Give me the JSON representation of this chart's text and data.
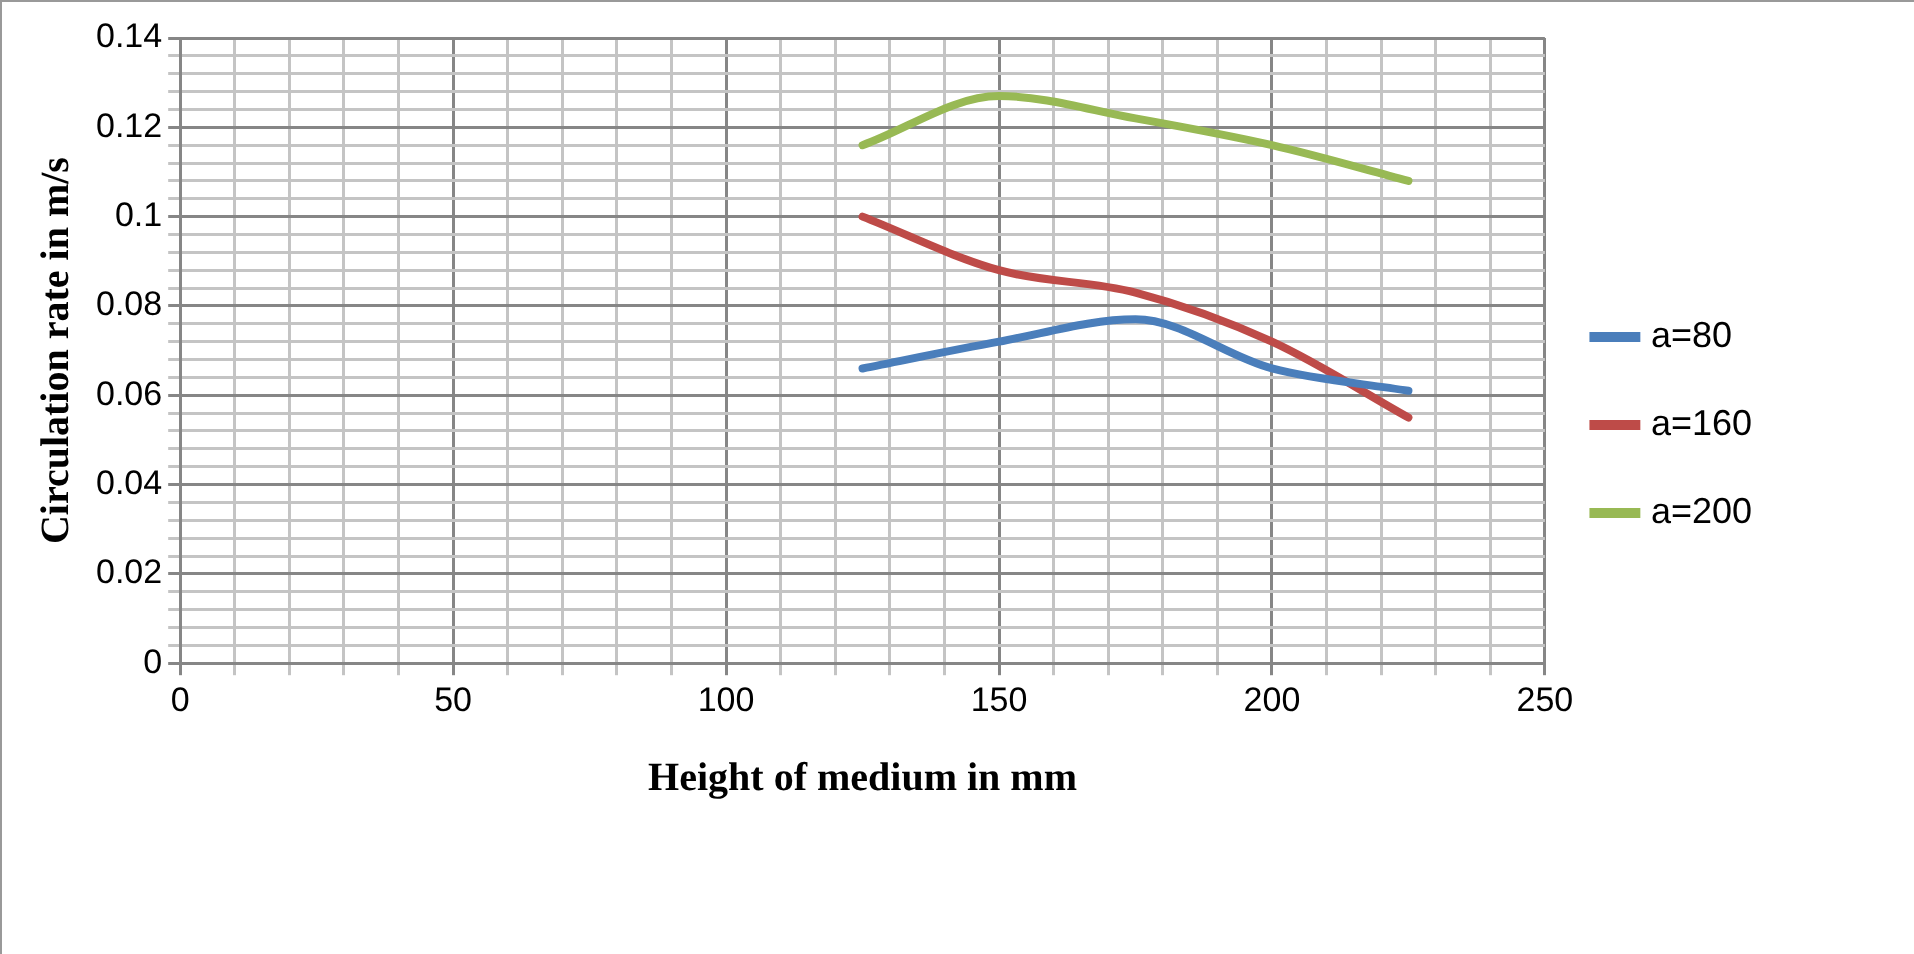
{
  "chart_data": {
    "type": "line",
    "xlabel": "Height of medium in mm",
    "ylabel": "Circulation rate in m/s",
    "x": [
      125,
      150,
      175,
      200,
      225
    ],
    "series": [
      {
        "name": "a=80",
        "color": "#4a7ebb",
        "values": [
          0.066,
          0.072,
          0.077,
          0.066,
          0.061
        ]
      },
      {
        "name": "a=160",
        "color": "#be4b48",
        "values": [
          0.1,
          0.088,
          0.083,
          0.072,
          0.055
        ]
      },
      {
        "name": "a=200",
        "color": "#98b954",
        "values": [
          0.116,
          0.127,
          0.122,
          0.116,
          0.108
        ]
      }
    ],
    "xlim": [
      0,
      250
    ],
    "xticks": [
      0,
      {
        "value": 10,
        "label": null
      },
      {
        "value": 20,
        "label": null
      },
      {
        "value": 30,
        "label": null
      },
      {
        "value": 40,
        "label": null
      },
      50,
      {
        "value": 60,
        "label": null
      },
      {
        "value": 70,
        "label": null
      },
      {
        "value": 80,
        "label": null
      },
      {
        "value": 90,
        "label": null
      },
      100,
      {
        "value": 110,
        "label": null
      },
      {
        "value": 120,
        "label": null
      },
      {
        "value": 130,
        "label": null
      },
      {
        "value": 140,
        "label": null
      },
      150,
      {
        "value": 160,
        "label": null
      },
      {
        "value": 170,
        "label": null
      },
      {
        "value": 180,
        "label": null
      },
      {
        "value": 190,
        "label": null
      },
      200,
      {
        "value": 210,
        "label": null
      },
      {
        "value": 220,
        "label": null
      },
      {
        "value": 230,
        "label": null
      },
      {
        "value": 240,
        "label": null
      },
      250
    ],
    "ylim": [
      0,
      0.14
    ],
    "yticks": [
      0,
      {
        "value": 0.004,
        "label": null
      },
      {
        "value": 0.008,
        "label": null
      },
      {
        "value": 0.012,
        "label": null
      },
      {
        "value": 0.016,
        "label": null
      },
      0.02,
      {
        "value": 0.024,
        "label": null
      },
      {
        "value": 0.028,
        "label": null
      },
      {
        "value": 0.032,
        "label": null
      },
      {
        "value": 0.036,
        "label": null
      },
      0.04,
      {
        "value": 0.044,
        "label": null
      },
      {
        "value": 0.048,
        "label": null
      },
      {
        "value": 0.052,
        "label": null
      },
      {
        "value": 0.056,
        "label": null
      },
      0.06,
      {
        "value": 0.064,
        "label": null
      },
      {
        "value": 0.068,
        "label": null
      },
      {
        "value": 0.072,
        "label": null
      },
      {
        "value": 0.076,
        "label": null
      },
      0.08,
      {
        "value": 0.084,
        "label": null
      },
      {
        "value": 0.088,
        "label": null
      },
      {
        "value": 0.092,
        "label": null
      },
      {
        "value": 0.096,
        "label": null
      },
      0.1,
      {
        "value": 0.104,
        "label": null
      },
      {
        "value": 0.108,
        "label": null
      },
      {
        "value": 0.112,
        "label": null
      },
      {
        "value": 0.116,
        "label": null
      },
      0.12,
      {
        "value": 0.124,
        "label": null
      },
      {
        "value": 0.128,
        "label": null
      },
      {
        "value": 0.132,
        "label": null
      },
      {
        "value": 0.136,
        "label": null
      },
      0.14
    ],
    "grid": true,
    "legend": "right",
    "marker": "none",
    "line_style": "solid"
  }
}
